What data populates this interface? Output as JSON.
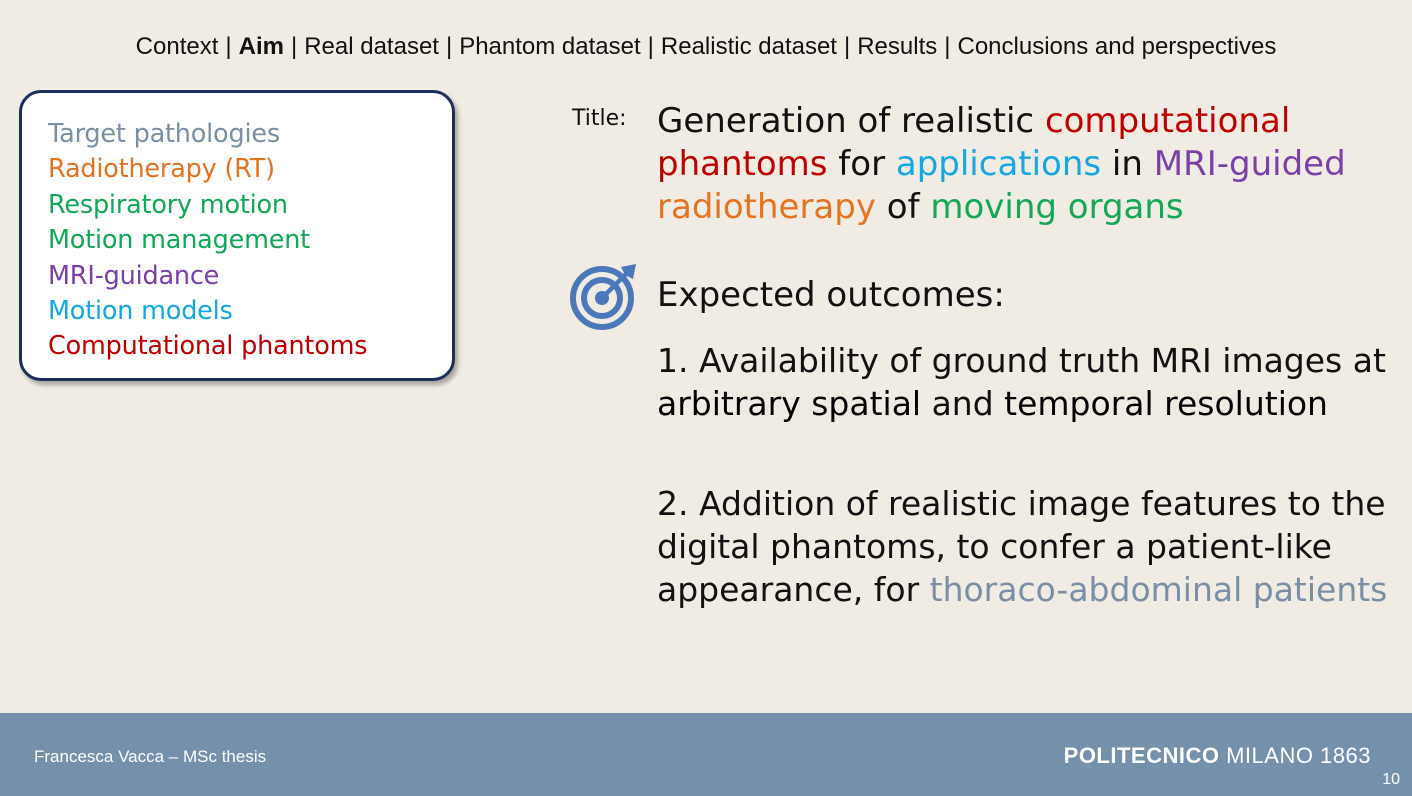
{
  "nav": {
    "items": [
      "Context",
      "Aim",
      "Real dataset",
      "Phantom dataset",
      "Realistic dataset",
      "Results",
      "Conclusions and perspectives"
    ],
    "active_item": "Aim",
    "separator": "|"
  },
  "topics": [
    {
      "label": "Target pathologies",
      "color": "#7a8fa6"
    },
    {
      "label": "Radiotherapy (RT)",
      "color": "#e6731f"
    },
    {
      "label": "Respiratory motion",
      "color": "#13a855"
    },
    {
      "label": "Motion management",
      "color": "#13a855"
    },
    {
      "label": "MRI-guidance",
      "color": "#7a3fa8"
    },
    {
      "label": "Motion models",
      "color": "#14a7e3"
    },
    {
      "label": "Computational phantoms",
      "color": "#c00000"
    }
  ],
  "title": {
    "label": "Title:",
    "segments": [
      {
        "text": "Generation of realistic ",
        "color": "#111111"
      },
      {
        "text": "computational phantoms",
        "color": "#c00000"
      },
      {
        "text": " for ",
        "color": "#111111"
      },
      {
        "text": "applications",
        "color": "#14a7e3"
      },
      {
        "text": " in ",
        "color": "#111111"
      },
      {
        "text": "MRI-guided",
        "color": "#7a3fa8"
      },
      {
        "text": " ",
        "color": "#111111"
      },
      {
        "text": "radiotherapy",
        "color": "#e6731f"
      },
      {
        "text": " of ",
        "color": "#111111"
      },
      {
        "text": "moving organs",
        "color": "#13a855"
      }
    ]
  },
  "outcomes": {
    "heading": "Expected outcomes:",
    "icon": "target-icon",
    "icon_color": "#4a78b8",
    "item1": {
      "segments": [
        {
          "text": "1. Availability of ground truth MRI images at ",
          "color": "#111111",
          "strong": false
        },
        {
          "text": "arbitrary spatial",
          "color": "#000000",
          "strong": true
        },
        {
          "text": " and ",
          "color": "#111111",
          "strong": false
        },
        {
          "text": "temporal resolution",
          "color": "#000000",
          "strong": true
        }
      ]
    },
    "item2": {
      "segments": [
        {
          "text": "2. Addition of realistic image features to the digital phantoms, to confer a patient-like appearance, for ",
          "color": "#111111",
          "strong": false
        },
        {
          "text": "thoraco-abdominal patients",
          "color": "#7a8fa6",
          "strong": false
        }
      ]
    }
  },
  "footer": {
    "author": "Francesca Vacca – MSc thesis",
    "brand_bold": "POLITECNICO",
    "brand_rest": " MILANO 1863",
    "page_number": "10",
    "background": "#7590aa"
  }
}
